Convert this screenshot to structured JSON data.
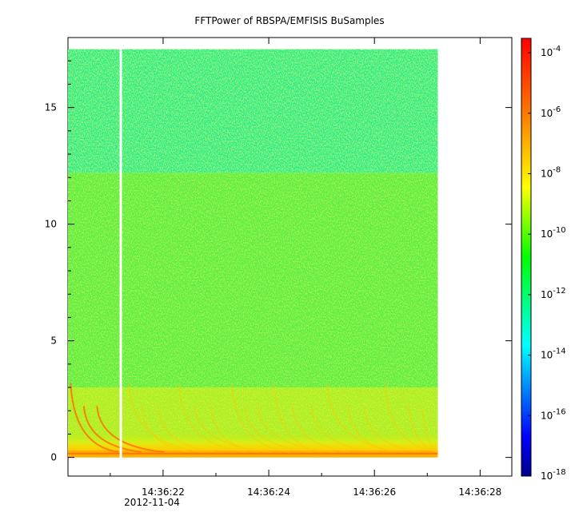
{
  "chart_data": {
    "type": "heatmap",
    "title": "FFTPower of RBSPA/EMFISIS  BuSamples",
    "xlabel": "",
    "ylabel": "",
    "x_axis": {
      "ticks": [
        "14:36:22",
        "14:36:24",
        "14:36:26",
        "14:36:28"
      ],
      "date_label": "2012-11-04",
      "range": [
        "14:36:20.2",
        "14:36:28.6"
      ]
    },
    "y_axis": {
      "ticks": [
        0,
        5,
        10,
        15
      ],
      "range": [
        -0.8,
        18.0
      ]
    },
    "colorbar": {
      "scale": "log",
      "range": [
        1e-18,
        0.0003
      ],
      "ticks": [
        {
          "base": "10",
          "exp": "-4"
        },
        {
          "base": "10",
          "exp": "-6"
        },
        {
          "base": "10",
          "exp": "-8"
        },
        {
          "base": "10",
          "exp": "-10"
        },
        {
          "base": "10",
          "exp": "-12"
        },
        {
          "base": "10",
          "exp": "-14"
        },
        {
          "base": "10",
          "exp": "-16"
        },
        {
          "base": "10",
          "exp": "-18"
        }
      ],
      "colors": [
        "#00008b",
        "#0000ff",
        "#00ffff",
        "#00ff00",
        "#ffff00",
        "#ff8000",
        "#ff0000"
      ]
    },
    "data_extent": {
      "time_start": "14:36:20.2",
      "time_end": "14:36:27.2",
      "freq_max": 17.5
    },
    "regions": [
      {
        "freq_range": [
          12.2,
          17.5
        ],
        "level": "1e-12",
        "color": "#22ee88"
      },
      {
        "freq_range": [
          3.0,
          12.2
        ],
        "level": "1e-10",
        "color": "#55ee44"
      },
      {
        "freq_range": [
          0.6,
          3.0
        ],
        "level": "1e-9",
        "color": "#aaee22"
      },
      {
        "freq_range": [
          0.0,
          0.6
        ],
        "level": "1e-7",
        "color": "#ffcc00"
      }
    ],
    "data_gap": {
      "time": "14:36:21.2"
    }
  }
}
